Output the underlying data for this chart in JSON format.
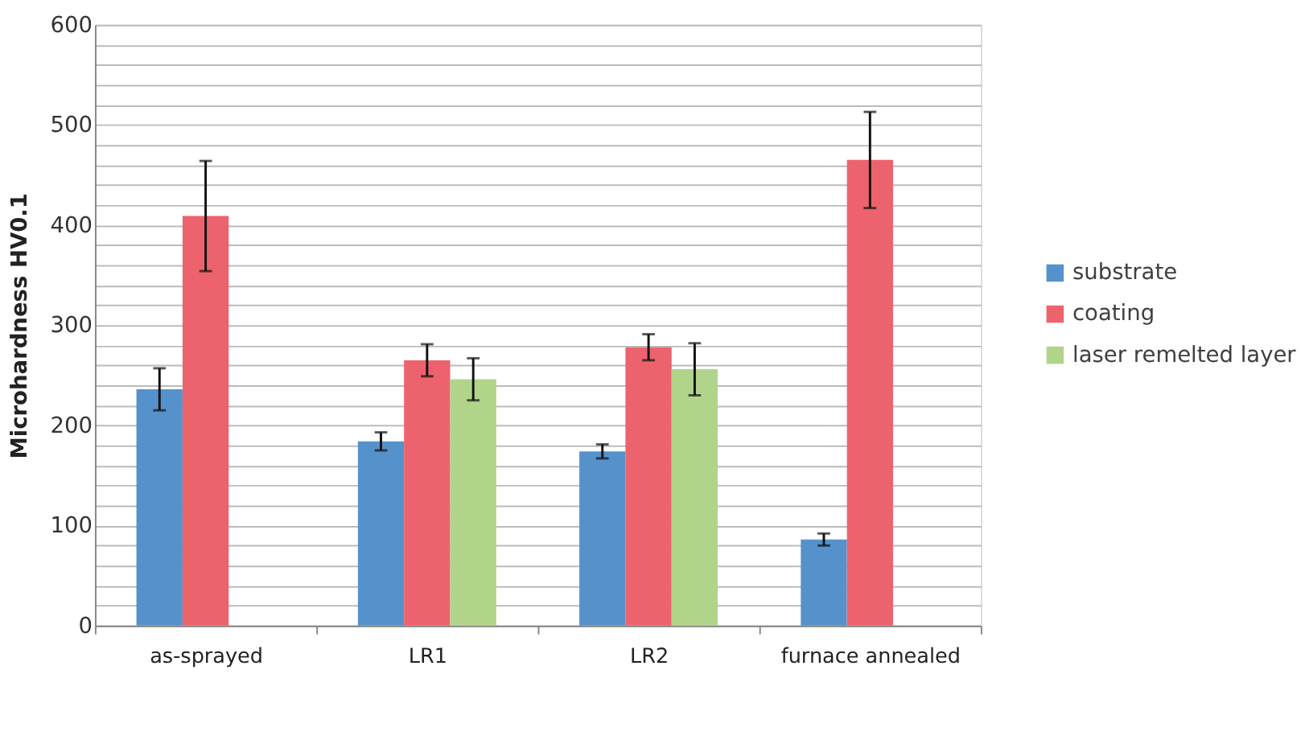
{
  "chart_data": {
    "type": "bar",
    "ylabel": "Microhardness HV0.1",
    "categories": [
      "as-sprayed",
      "LR1",
      "LR2",
      "furnace annealed"
    ],
    "series": [
      {
        "name": "substrate",
        "color": "#5592cc",
        "values": [
          236,
          184,
          174,
          86
        ],
        "errors": [
          21,
          9,
          7,
          6
        ]
      },
      {
        "name": "coating",
        "color": "#ec636d",
        "values": [
          409,
          265,
          278,
          465
        ],
        "errors": [
          55,
          16,
          13,
          48
        ]
      },
      {
        "name": "laser remelted layer",
        "color": "#b0d58a",
        "values": [
          null,
          246,
          256,
          null
        ],
        "errors": [
          null,
          21,
          26,
          null
        ]
      }
    ],
    "ylim": [
      0,
      600
    ],
    "yticks": [
      0,
      {
        "value": 20,
        "label": null
      },
      {
        "value": 40,
        "label": null
      },
      {
        "value": 60,
        "label": null
      },
      {
        "value": 80,
        "label": null
      },
      100,
      {
        "value": 120,
        "label": null
      },
      {
        "value": 140,
        "label": null
      },
      {
        "value": 160,
        "label": null
      },
      {
        "value": 180,
        "label": null
      },
      200,
      {
        "value": 220,
        "label": null
      },
      {
        "value": 240,
        "label": null
      },
      {
        "value": 260,
        "label": null
      },
      {
        "value": 280,
        "label": null
      },
      300,
      {
        "value": 320,
        "label": null
      },
      {
        "value": 340,
        "label": null
      },
      {
        "value": 360,
        "label": null
      },
      {
        "value": 380,
        "label": null
      },
      400,
      {
        "value": 420,
        "label": null
      },
      {
        "value": 440,
        "label": null
      },
      {
        "value": 460,
        "label": null
      },
      {
        "value": 480,
        "label": null
      },
      500,
      {
        "value": 520,
        "label": null
      },
      {
        "value": 540,
        "label": null
      },
      {
        "value": 560,
        "label": null
      },
      {
        "value": 580,
        "label": null
      },
      600
    ],
    "grid": "y",
    "legend": "right"
  }
}
